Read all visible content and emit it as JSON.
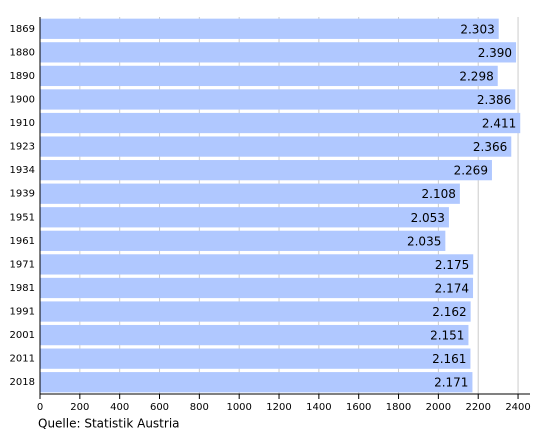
{
  "chart_data": {
    "type": "bar",
    "orientation": "horizontal",
    "categories": [
      "1869",
      "1880",
      "1890",
      "1900",
      "1910",
      "1923",
      "1934",
      "1939",
      "1951",
      "1961",
      "1971",
      "1981",
      "1991",
      "2001",
      "2011",
      "2018"
    ],
    "values": [
      2303,
      2390,
      2298,
      2386,
      2411,
      2366,
      2269,
      2108,
      2053,
      2035,
      2175,
      2174,
      2162,
      2151,
      2161,
      2171
    ],
    "value_labels": [
      "2.303",
      "2.390",
      "2.298",
      "2.386",
      "2.411",
      "2.366",
      "2.269",
      "2.108",
      "2.053",
      "2.035",
      "2.175",
      "2.174",
      "2.162",
      "2.151",
      "2.161",
      "2.171"
    ],
    "color": "#b0c8ff",
    "xlim": [
      0,
      2460
    ],
    "xticks": [
      0,
      200,
      400,
      600,
      800,
      1000,
      1200,
      1400,
      1600,
      1800,
      2000,
      2200,
      2400
    ],
    "grid": true,
    "source": "Quelle: Statistik Austria"
  }
}
